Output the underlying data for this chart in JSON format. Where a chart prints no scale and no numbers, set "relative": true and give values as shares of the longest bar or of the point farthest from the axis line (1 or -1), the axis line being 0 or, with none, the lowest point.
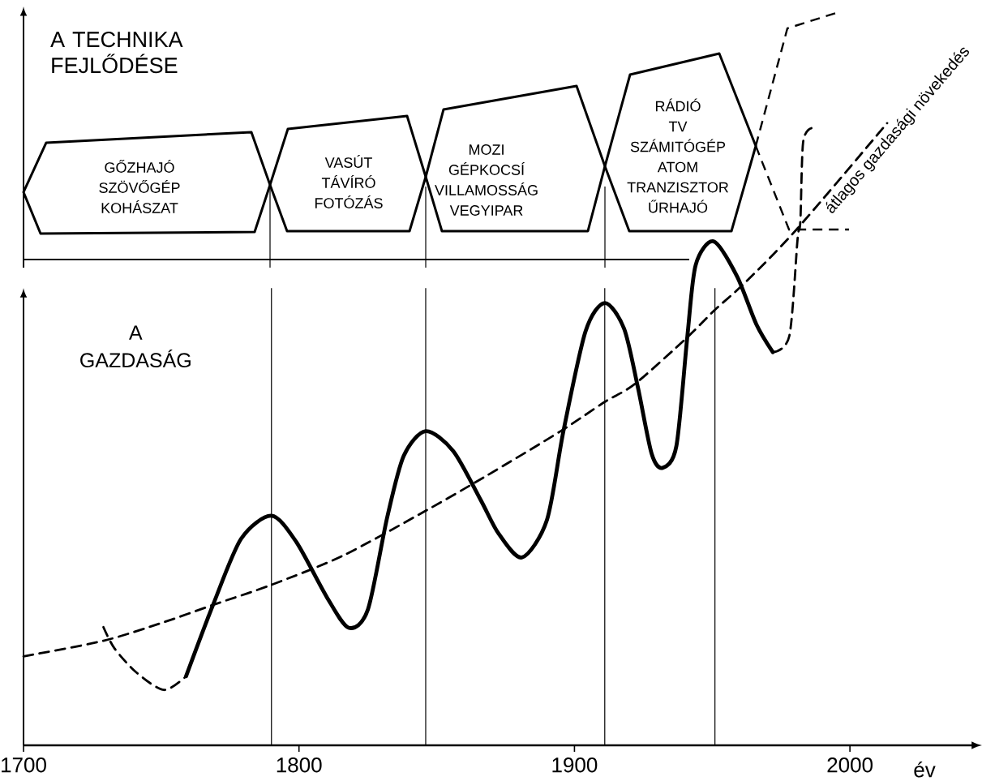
{
  "chart_data": [
    {
      "type": "other",
      "title": "A TECHNIKA FEJLŐDÉSE",
      "annotations": [
        "GŐZHAJÓ SZÖVŐGÉP KOHÁSZAT",
        "VASÚT TÁVÍRÓ FOTÓZÁS",
        "MOZI GÉPKOCSÍ VILLAMOSSÁG VEGYIPAR",
        "RÁDIÓ TV SZÁMITÓGÉP ATOM TRANZISZTOR ŰRHAJÓ"
      ]
    },
    {
      "type": "line",
      "title": "A GAZDASÁG",
      "xlabel": "év",
      "relative": true,
      "xlim": [
        1700,
        2045
      ],
      "xticks": [
        1700,
        1800,
        1900,
        2000
      ],
      "ref_lines": [
        {
          "axis": "x",
          "value": 1790
        },
        {
          "axis": "x",
          "value": 1846
        },
        {
          "axis": "x",
          "value": 1911
        },
        {
          "axis": "x",
          "value": 1951
        }
      ],
      "series": [
        {
          "color": "#000000",
          "line_style": "dashed",
          "x": [
            1729,
            1733,
            1741,
            1751,
            1759
          ],
          "values": [
            0.19,
            0.156,
            0.117,
            0.089,
            0.111
          ]
        },
        {
          "color": "#000000",
          "line_style": "solid",
          "x": [
            1759,
            1769,
            1779,
            1790,
            1799,
            1810,
            1818,
            1825,
            1832,
            1838,
            1846,
            1856,
            1866,
            1872.5,
            1881,
            1890,
            1896,
            1904,
            1911,
            1918,
            1923,
            1928,
            1932,
            1937,
            1941,
            1944,
            1950.5,
            1959,
            1966,
            1972
          ],
          "values": [
            0.111,
            0.228,
            0.332,
            0.369,
            0.327,
            0.239,
            0.189,
            0.218,
            0.366,
            0.465,
            0.505,
            0.473,
            0.394,
            0.34,
            0.302,
            0.362,
            0.505,
            0.665,
            0.711,
            0.67,
            0.576,
            0.469,
            0.446,
            0.481,
            0.658,
            0.772,
            0.81,
            0.754,
            0.677,
            0.632
          ]
        },
        {
          "color": "#000000",
          "line_style": "dashed",
          "x": [
            1972,
            1978,
            1981,
            1982,
            1983,
            1986
          ],
          "values": [
            0.632,
            0.658,
            0.814,
            0.842,
            0.969,
            0.992
          ]
        },
        {
          "name": "átlagos gazdasági növekedés",
          "color": "#000000",
          "line_style": "dashed",
          "x": [
            1700,
            1729,
            1751,
            1769,
            1790,
            1816,
            1846,
            1868,
            1895,
            1911,
            1922,
            1941,
            1951,
            1962,
            1981,
            2013.5
          ],
          "values": [
            0.143,
            0.168,
            0.198,
            0.226,
            0.258,
            0.305,
            0.377,
            0.433,
            0.505,
            0.552,
            0.581,
            0.656,
            0.7,
            0.744,
            0.831,
            1.0
          ]
        }
      ]
    }
  ]
}
